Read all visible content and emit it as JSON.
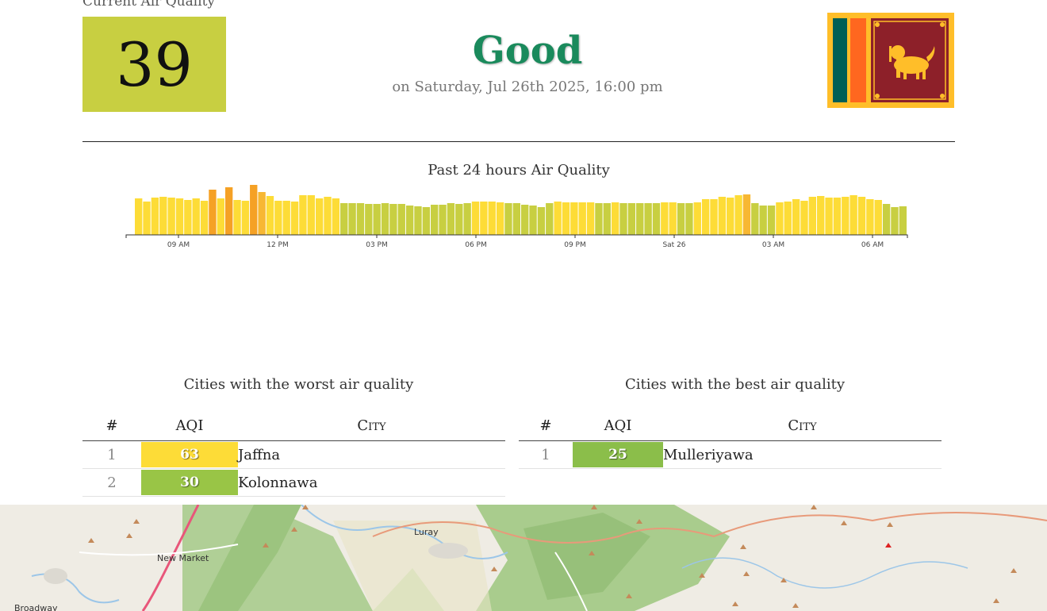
{
  "current": {
    "label": "Current Air Quality",
    "aqi": "39",
    "status": "Good",
    "date": "on Saturday, Jul 26th 2025, 16:00 pm",
    "aqi_color": "#c8cf41",
    "status_color": "#1a8a5c"
  },
  "chart": {
    "title": "Past 24 hours Air Quality"
  },
  "chart_data": {
    "type": "bar",
    "title": "Past 24 hours Air Quality",
    "tick_labels": [
      "09 AM",
      "12 PM",
      "03 PM",
      "06 PM",
      "09 PM",
      "Sat 26",
      "03 AM",
      "06 AM"
    ],
    "ylim": [
      0,
      70
    ],
    "values": [
      46,
      42,
      47,
      48,
      47,
      46,
      44,
      46,
      43,
      57,
      46,
      60,
      44,
      43,
      63,
      54,
      49,
      43,
      43,
      42,
      50,
      50,
      46,
      48,
      46,
      40,
      40,
      40,
      39,
      39,
      40,
      39,
      39,
      37,
      36,
      35,
      38,
      38,
      40,
      39,
      40,
      42,
      42,
      42,
      41,
      40,
      40,
      38,
      37,
      35,
      40,
      42,
      41,
      41,
      41,
      41,
      40,
      40,
      41,
      40,
      40,
      40,
      40,
      40,
      41,
      41,
      40,
      40,
      41,
      45,
      45,
      48,
      47,
      50,
      51,
      40,
      37,
      37,
      41,
      42,
      45,
      43,
      48,
      49,
      47,
      47,
      48,
      50,
      48,
      45,
      44,
      39,
      35,
      36
    ],
    "colors": {
      "good": "#c8cf41",
      "moderate": "#fddc37",
      "elevated": "#f7b733",
      "high": "#f5a125"
    }
  },
  "worst": {
    "title": "Cities with the worst air quality",
    "headers": [
      "#",
      "AQI",
      "City"
    ],
    "rows": [
      {
        "rank": "1",
        "aqi": "63",
        "city": "Jaffna",
        "color": "#fddc37"
      },
      {
        "rank": "2",
        "aqi": "30",
        "city": "Kolonnawa",
        "color": "#99c546"
      }
    ]
  },
  "best": {
    "title": "Cities with the best air quality",
    "headers": [
      "#",
      "AQI",
      "City"
    ],
    "rows": [
      {
        "rank": "1",
        "aqi": "25",
        "city": "Mulleriyawa",
        "color": "#8bbe4a"
      }
    ]
  },
  "map": {
    "labels": [
      "Luray",
      "New Market",
      "Broadway"
    ]
  },
  "flag": {
    "name": "sri-lanka-flag",
    "colors": {
      "border": "#ffbe29",
      "green": "#005f56",
      "orange": "#ff671f",
      "maroon": "#8d2029"
    }
  }
}
